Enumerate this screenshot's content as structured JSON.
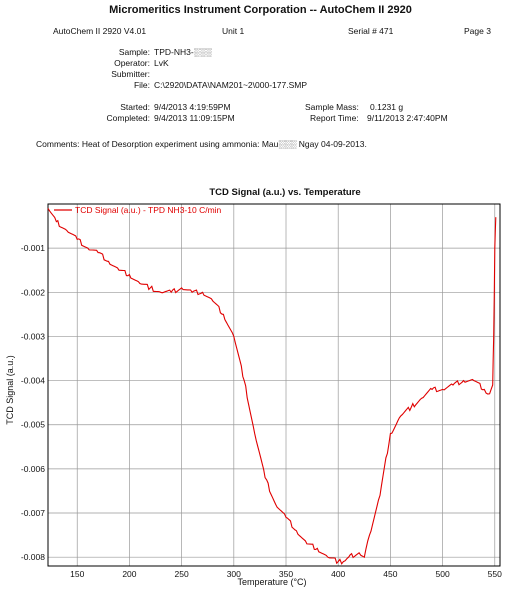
{
  "header": {
    "title": "Micromeritics Instrument Corporation -- AutoChem II 2920",
    "instrument": "AutoChem II 2920 V4.01",
    "unit": "Unit 1",
    "serial": "Serial # 471",
    "page": "Page 3"
  },
  "info": {
    "sample_label": "Sample:",
    "sample_value": "TPD-NH3-░░░",
    "operator_label": "Operator:",
    "operator_value": "LvK",
    "submitter_label": "Submitter:",
    "submitter_value": "",
    "file_label": "File:",
    "file_value": "C:\\2920\\DATA\\NAM201~2\\000-177.SMP",
    "started_label": "Started:",
    "started_value": "9/4/2013 4:19:59PM",
    "completed_label": "Completed:",
    "completed_value": "9/4/2013 11:09:15PM",
    "mass_label": "Sample Mass:",
    "mass_value": "0.1231 g",
    "report_label": "Report Time:",
    "report_value": "9/11/2013 2:47:40PM",
    "comments": "Comments: Heat of Desorption experiment using ammonia: Mau░░░ Ngay 04-09-2013."
  },
  "colors": {
    "series": "#e00000",
    "grid": "#999999",
    "axis": "#000000"
  },
  "chart_data": {
    "type": "line",
    "title": "TCD Signal (a.u.) vs. Temperature",
    "xlabel": "Temperature (°C)",
    "ylabel": "TCD Signal (a.u.)",
    "xlim": [
      122,
      555
    ],
    "ylim": [
      -0.0082,
      -0.0
    ],
    "xticks": [
      150,
      200,
      250,
      300,
      350,
      400,
      450,
      500,
      550
    ],
    "yticks": [
      -0.008,
      -0.007,
      -0.006,
      -0.005,
      -0.004,
      -0.003,
      -0.002,
      -0.001
    ],
    "ytick_labels": [
      "-0.008",
      "-0.007",
      "-0.006",
      "-0.005",
      "-0.004",
      "-0.003",
      "-0.002",
      "-0.001"
    ],
    "grid": true,
    "legend_position": "top-left",
    "series": [
      {
        "name": "TCD Signal (a.u.) - TPD NH3-10 C/min",
        "x": [
          122,
          130,
          140,
          150,
          160,
          170,
          180,
          190,
          200,
          210,
          220,
          230,
          240,
          250,
          260,
          270,
          280,
          290,
          300,
          310,
          320,
          330,
          340,
          350,
          360,
          370,
          380,
          390,
          400,
          405,
          410,
          420,
          425,
          430,
          440,
          450,
          460,
          470,
          480,
          490,
          500,
          510,
          520,
          530,
          540,
          545,
          548,
          549,
          550,
          551
        ],
        "y": [
          -0.0001,
          -0.0004,
          -0.0006,
          -0.0008,
          -0.001,
          -0.0011,
          -0.0013,
          -0.0015,
          -0.0016,
          -0.0018,
          -0.0019,
          -0.002,
          -0.002,
          -0.0019,
          -0.002,
          -0.002,
          -0.0022,
          -0.0025,
          -0.003,
          -0.004,
          -0.0052,
          -0.0062,
          -0.0068,
          -0.0071,
          -0.0074,
          -0.0077,
          -0.0078,
          -0.008,
          -0.0081,
          -0.0081,
          -0.008,
          -0.0079,
          -0.008,
          -0.0075,
          -0.0066,
          -0.0052,
          -0.0048,
          -0.0046,
          -0.0044,
          -0.0042,
          -0.0042,
          -0.0041,
          -0.004,
          -0.004,
          -0.0042,
          -0.0043,
          -0.0041,
          -0.003,
          -0.001,
          -0.0003
        ]
      }
    ]
  }
}
